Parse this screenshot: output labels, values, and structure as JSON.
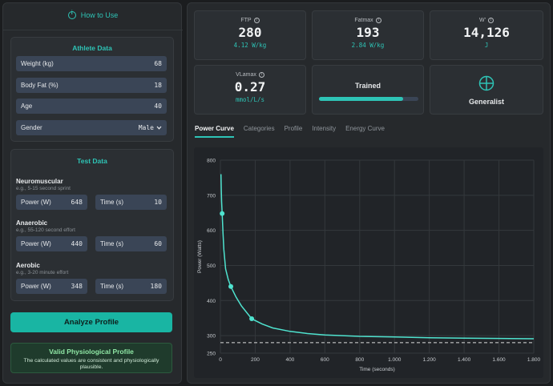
{
  "how_to_use": "How to Use",
  "athlete": {
    "title": "Athlete Data",
    "weight": {
      "label": "Weight (kg)",
      "value": "68"
    },
    "bodyfat": {
      "label": "Body Fat (%)",
      "value": "18"
    },
    "age": {
      "label": "Age",
      "value": "40"
    },
    "gender": {
      "label": "Gender",
      "value": "Male"
    }
  },
  "test": {
    "title": "Test Data",
    "neuromuscular": {
      "title": "Neuromuscular",
      "sub": "e.g., 5-15 second sprint",
      "power_label": "Power (W)",
      "power": "648",
      "time_label": "Time (s)",
      "time": "10"
    },
    "anaerobic": {
      "title": "Anaerobic",
      "sub": "e.g., 55-120 second effort",
      "power_label": "Power (W)",
      "power": "440",
      "time_label": "Time (s)",
      "time": "60"
    },
    "aerobic": {
      "title": "Aerobic",
      "sub": "e.g., 3-20 minute effort",
      "power_label": "Power (W)",
      "power": "348",
      "time_label": "Time (s)",
      "time": "180"
    }
  },
  "analyze_label": "Analyze Profile",
  "status": {
    "title": "Valid Physiological Profile",
    "desc": "The calculated values are consistent and physiologically plausible."
  },
  "metrics": {
    "ftp": {
      "label": "FTP",
      "value": "280",
      "sub": "4.12 W/kg"
    },
    "fatmax": {
      "label": "Fatmax",
      "value": "193",
      "sub": "2.84 W/kg"
    },
    "wprime": {
      "label": "W'",
      "value": "14,126",
      "sub": "J"
    },
    "vlamax": {
      "label": "VLamax",
      "value": "0.27",
      "sub": "mmol/L/s"
    },
    "trained": {
      "label": "Trained",
      "progress": 0.85
    },
    "generalist": {
      "label": "Generalist",
      "icon": "crosshair-icon"
    }
  },
  "tabs": [
    "Power Curve",
    "Categories",
    "Profile",
    "Intensity",
    "Energy Curve"
  ],
  "colors": {
    "accent": "#2ec4b6",
    "button": "#19b5a3"
  },
  "chart_data": {
    "type": "line",
    "xlabel": "Time (seconds)",
    "ylabel": "Power (Watts)",
    "xlim": [
      0,
      1800
    ],
    "ylim": [
      250,
      800
    ],
    "xticks": [
      0,
      200,
      400,
      600,
      800,
      1000,
      1200,
      1400,
      1600,
      1800
    ],
    "xtick_labels": [
      "0",
      "200",
      "400",
      "600",
      "800",
      "1.000",
      "1.200",
      "1.400",
      "1.600",
      "1.800"
    ],
    "yticks": [
      250,
      300,
      400,
      500,
      600,
      700,
      800
    ],
    "ytick_labels": [
      "250",
      "300",
      "400",
      "500",
      "600",
      "700",
      "800"
    ],
    "grid": true,
    "series": [
      {
        "x": [
          3,
          5,
          7,
          10,
          15,
          20,
          30,
          45,
          60,
          90,
          120,
          180,
          240,
          300,
          400,
          500,
          600,
          800,
          1000,
          1200,
          1400,
          1600,
          1800
        ],
        "y": [
          760,
          715,
          682,
          648,
          590,
          545,
          490,
          460,
          440,
          410,
          385,
          348,
          333,
          322,
          312,
          306,
          302,
          298,
          296,
          294,
          293,
          292,
          291
        ]
      }
    ],
    "points": [
      {
        "x": 10,
        "y": 648
      },
      {
        "x": 60,
        "y": 440
      },
      {
        "x": 180,
        "y": 348
      }
    ],
    "reference_line": {
      "y": 280,
      "style": "dashed"
    }
  }
}
